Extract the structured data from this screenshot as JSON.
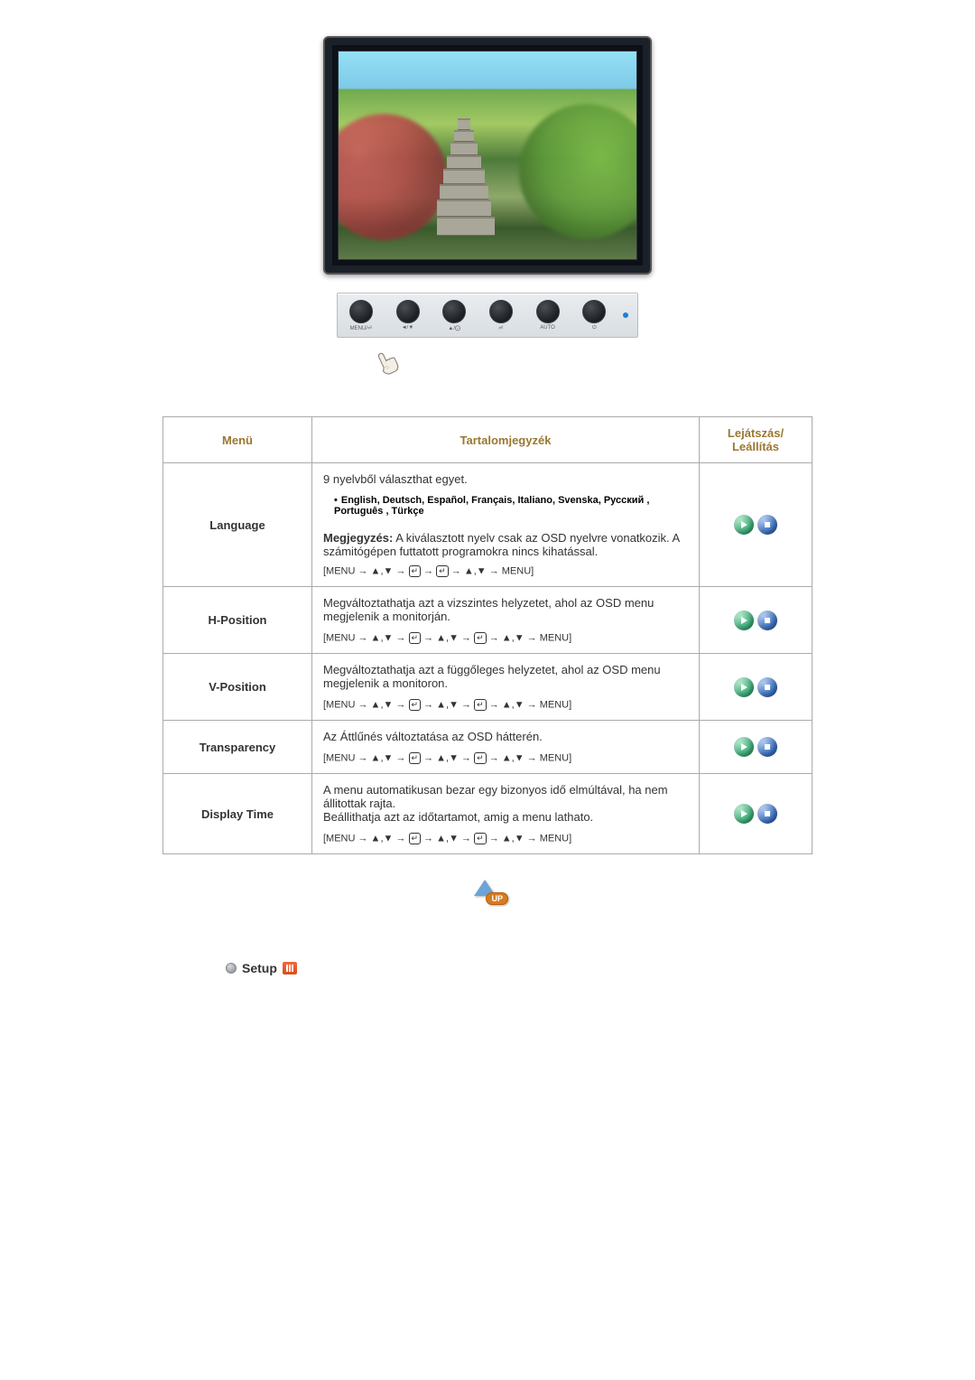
{
  "monitor": {
    "control_labels": [
      "MENU/⏎",
      "◄/▼",
      "▲/⨀",
      "⏎",
      "AUTO",
      "⏻"
    ]
  },
  "headers": {
    "menu": "Menü",
    "content": "Tartalomjegyzék",
    "play": "Lejátszás/\nLeállítás"
  },
  "nav_sequences": {
    "lang": "[MENU → ▲,▼ → ⏎ → ⏎ → ▲,▼ → MENU]",
    "common": "[MENU → ▲,▼ → ⏎ → ▲,▼ → ⏎ → ▲,▼ → MENU]"
  },
  "rows": [
    {
      "label": "Language",
      "blocks": {
        "intro": "9 nyelvből választhat egyet.",
        "lang_bullet": "•",
        "lang_list": "English, Deutsch, Español, Français,  Italiano, Svenska, Русский , Português , Türkçe",
        "note_label": "Megjegyzés:",
        "note_text": " A kiválasztott nyelv csak az OSD nyelvre vonatkozik. A számitógépen futtatott programokra nincs kihatással."
      },
      "seq_key": "lang"
    },
    {
      "label": "H-Position",
      "desc": "Megváltoztathatja azt a vizszintes helyzetet, ahol az OSD menu megjelenik a monitorján.",
      "seq_key": "common"
    },
    {
      "label": "V-Position",
      "desc": "Megváltoztathatja azt a függőleges helyzetet, ahol az OSD menu megjelenik a monitoron.",
      "seq_key": "common"
    },
    {
      "label": "Transparency",
      "desc": "Az Áttlűnés változtatása az OSD hátterén.",
      "seq_key": "common"
    },
    {
      "label": "Display Time",
      "desc": "A menu automatikusan bezar egy bizonyos idő elmúltával, ha nem állitottak rajta.\nBeállithatja azt az időtartamot, amig a menu lathato.",
      "seq_key": "common"
    }
  ],
  "up_label": "UP",
  "setup_label": "Setup",
  "colors": {
    "header_text": "#9a7731",
    "border": "#aaaaaa",
    "play_icon_bg": "#3aa874",
    "stop_icon_bg": "#3a6dbb",
    "up_arrow": "#6ea4d5",
    "up_pill": "#d97a1f",
    "setup_icon": "#e25a2b"
  }
}
